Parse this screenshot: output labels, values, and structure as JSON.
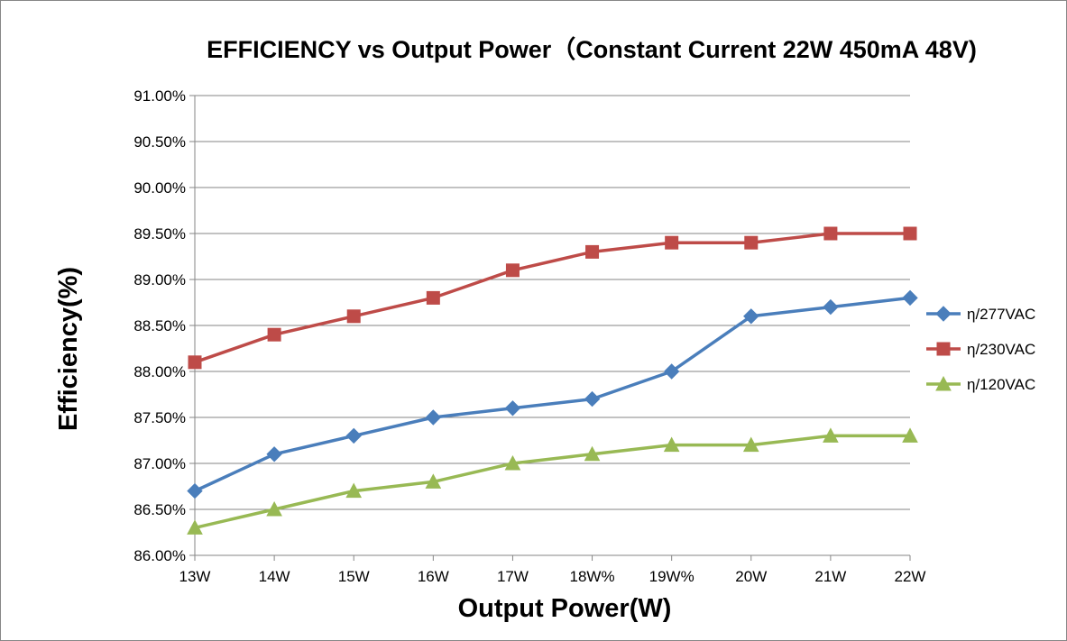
{
  "chart_data": {
    "type": "line",
    "title": "EFFICIENCY vs Output Power（Constant Current 22W 450mA 48V)",
    "xlabel": "Output Power(W)",
    "ylabel": "Efficiency(%)",
    "categories": [
      "13W",
      "14W",
      "15W",
      "16W",
      "17W",
      "18W%",
      "19W%",
      "20W",
      "21W",
      "22W"
    ],
    "ylim": [
      86.0,
      91.0
    ],
    "ytick_step": 0.5,
    "ytick_labels": [
      "86.00%",
      "86.50%",
      "87.00%",
      "87.50%",
      "88.00%",
      "88.50%",
      "89.00%",
      "89.50%",
      "90.00%",
      "90.50%",
      "91.00%"
    ],
    "grid": true,
    "legend_position": "right",
    "series": [
      {
        "name": "η/277VAC",
        "color": "#4a7ebb",
        "marker": "diamond",
        "values": [
          86.7,
          87.1,
          87.3,
          87.5,
          87.6,
          87.7,
          88.0,
          88.6,
          88.7,
          88.8
        ]
      },
      {
        "name": "η/230VAC",
        "color": "#be4b48",
        "marker": "square",
        "values": [
          88.1,
          88.4,
          88.6,
          88.8,
          89.1,
          89.3,
          89.4,
          89.4,
          89.5,
          89.5
        ]
      },
      {
        "name": "η/120VAC",
        "color": "#98b954",
        "marker": "triangle",
        "values": [
          86.3,
          86.5,
          86.7,
          86.8,
          87.0,
          87.1,
          87.2,
          87.2,
          87.3,
          87.3
        ]
      }
    ]
  }
}
